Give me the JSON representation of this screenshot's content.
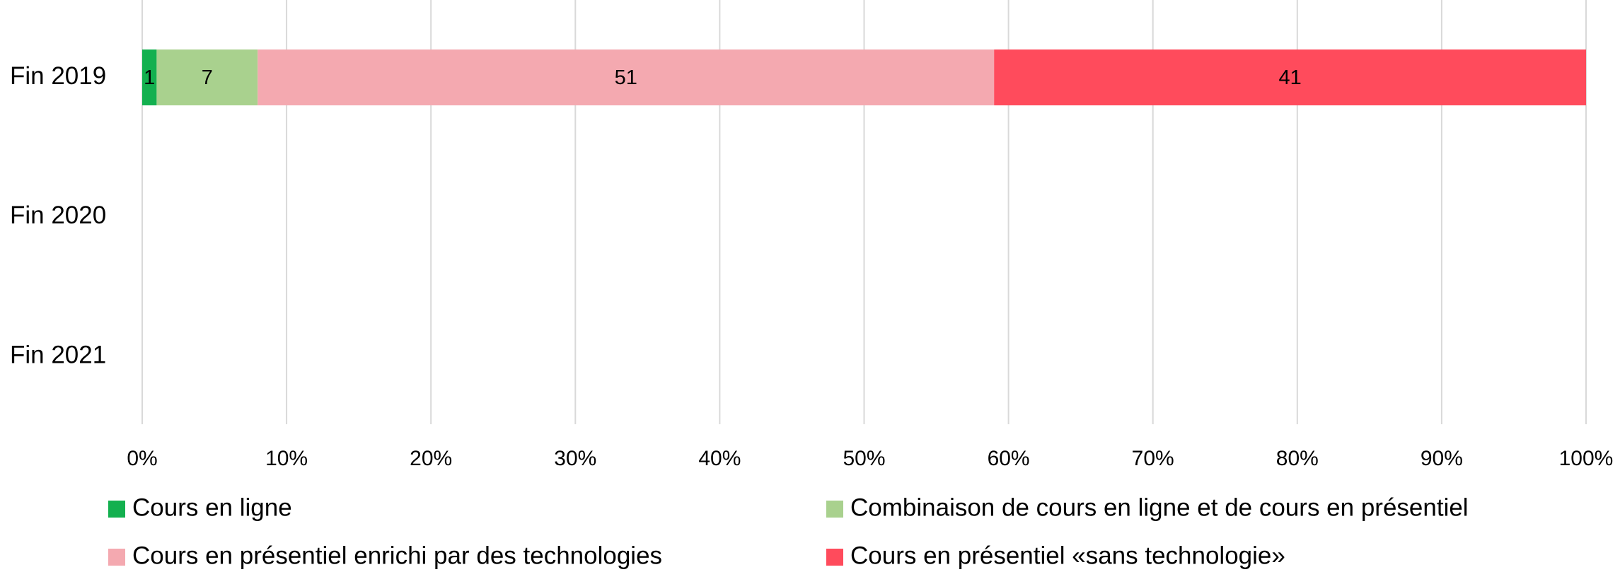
{
  "chart_data": {
    "type": "stacked_bar_horizontal",
    "categories": [
      "Fin 2019",
      "Fin 2020",
      "Fin 2021"
    ],
    "series": [
      {
        "name": "Cours en ligne",
        "color": "#13b04f",
        "values": [
          1,
          null,
          null
        ]
      },
      {
        "name": "Combinaison de cours en ligne et de cours en présentiel",
        "color": "#a9d18e",
        "values": [
          7,
          null,
          null
        ]
      },
      {
        "name": "Cours en présentiel enrichi par des technologies",
        "color": "#f4a9b0",
        "values": [
          51,
          null,
          null
        ]
      },
      {
        "name": "Cours en présentiel «sans technologie»",
        "color": "#ff4b5c",
        "values": [
          41,
          null,
          null
        ]
      }
    ],
    "xlim": [
      0,
      100
    ],
    "xticks": [
      {
        "value": 0,
        "label": "0%"
      },
      {
        "value": 10,
        "label": "10%"
      },
      {
        "value": 20,
        "label": "20%"
      },
      {
        "value": 30,
        "label": "30%"
      },
      {
        "value": 40,
        "label": "40%"
      },
      {
        "value": 50,
        "label": "50%"
      },
      {
        "value": 60,
        "label": "60%"
      },
      {
        "value": 70,
        "label": "70%"
      },
      {
        "value": 80,
        "label": "80%"
      },
      {
        "value": 90,
        "label": "90%"
      },
      {
        "value": 100,
        "label": "100%"
      }
    ],
    "grid": true,
    "legend": "bottom"
  }
}
